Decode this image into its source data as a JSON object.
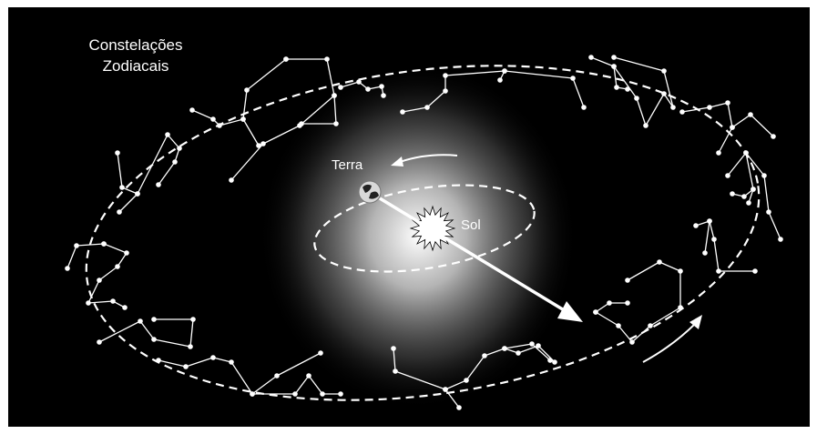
{
  "diagram": {
    "title_lines": [
      "Constelações",
      "Zodiacais"
    ],
    "earth_label": "Terra",
    "sun_label": "Sol"
  },
  "colors": {
    "background": "#000000",
    "frame_border": "#ffffff",
    "lines": "#ffffff",
    "glow_center": "#ffffff"
  },
  "icons": {
    "sun": "sun-burst-icon",
    "earth": "earth-globe-icon",
    "motion_arrows": "curved-arrow-icon"
  }
}
